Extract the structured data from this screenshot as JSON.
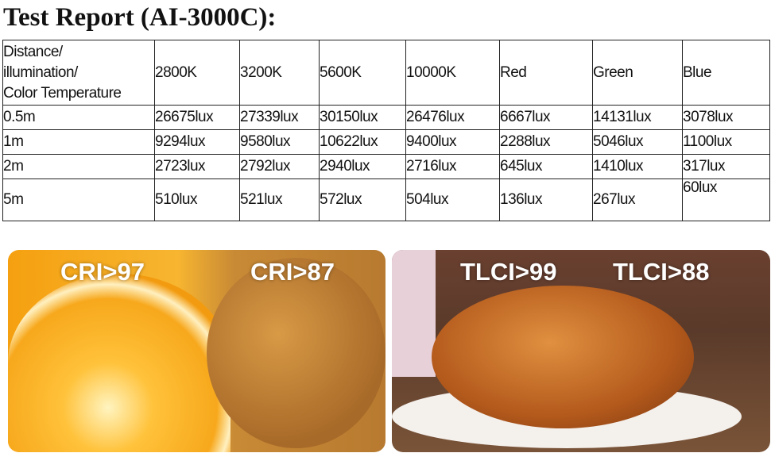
{
  "title": "Test Report (AI-3000C):",
  "table": {
    "header": [
      "Distance/\nillumination/\nColor Temperature",
      "2800K",
      "3200K",
      "5600K",
      "10000K",
      "Red",
      "Green",
      "Blue"
    ],
    "rows": [
      [
        "0.5m",
        "26675lux",
        "27339lux",
        "30150lux",
        "26476lux",
        "6667lux",
        "14131lux",
        "3078lux"
      ],
      [
        "1m",
        "9294lux",
        "9580lux",
        "10622lux",
        "9400lux",
        "2288lux",
        "5046lux",
        "1100lux"
      ],
      [
        "2m",
        "2723lux",
        "2792lux",
        "2940lux",
        "2716lux",
        "645lux",
        "1410lux",
        "317lux"
      ],
      [
        "5m",
        "510lux",
        "521lux",
        "572lux",
        "504lux",
        "136lux",
        "267lux",
        "60lux"
      ]
    ]
  },
  "panels": {
    "left": {
      "label_a": "CRI>97",
      "label_b": "CRI>87"
    },
    "right": {
      "label_a": "TLCI>99",
      "label_b": "TLCI>88"
    }
  }
}
